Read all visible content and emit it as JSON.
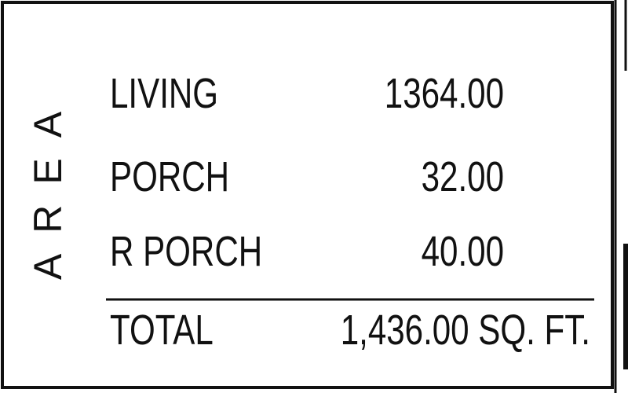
{
  "side_label": "AREA",
  "table": {
    "rows": [
      [
        "LIVING",
        "1364.00"
      ],
      [
        "PORCH",
        "32.00"
      ],
      [
        "R PORCH",
        "40.00"
      ]
    ],
    "total": [
      "TOTAL",
      "1,436.00 SQ. FT."
    ]
  }
}
